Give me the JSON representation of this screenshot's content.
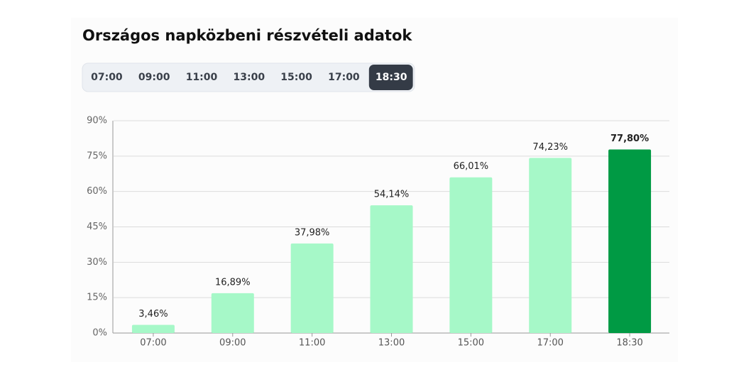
{
  "chart_data": {
    "type": "bar",
    "title": "Országos napközbeni részvételi adatok",
    "categories": [
      "07:00",
      "09:00",
      "11:00",
      "13:00",
      "15:00",
      "17:00",
      "18:30"
    ],
    "active_tab": 6,
    "values": [
      3.46,
      16.89,
      37.98,
      54.14,
      66.01,
      74.23,
      77.8
    ],
    "value_labels": [
      "3,46%",
      "16,89%",
      "37,98%",
      "54,14%",
      "66,01%",
      "74,23%",
      "77,80%"
    ],
    "colors": [
      "#a6f8c8",
      "#a6f8c8",
      "#a6f8c8",
      "#a6f8c8",
      "#a6f8c8",
      "#a6f8c8",
      "#009a44"
    ],
    "ylim": [
      0,
      90
    ],
    "yticks": [
      {
        "value": 0,
        "label": "0%"
      },
      {
        "value": 15,
        "label": "15%"
      },
      {
        "value": 30,
        "label": "30%"
      },
      {
        "value": 45,
        "label": "45%"
      },
      {
        "value": 60,
        "label": "60%"
      },
      {
        "value": 75,
        "label": "75%"
      },
      {
        "value": 90,
        "label": "90%"
      }
    ],
    "grid": true
  }
}
